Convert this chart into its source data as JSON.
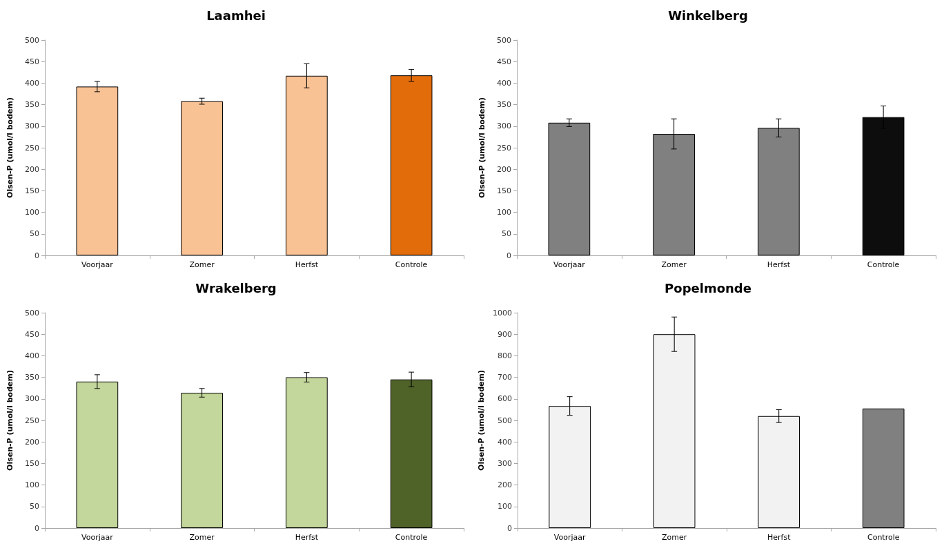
{
  "chart_data": [
    {
      "type": "bar",
      "title": "Laamhei",
      "ylabel": "Olsen-P (umol/l bodem)",
      "categories": [
        "Voorjaar",
        "Zomer",
        "Herfst",
        "Controle"
      ],
      "values": [
        392,
        358,
        417,
        418
      ],
      "errors": [
        12,
        7,
        28,
        14
      ],
      "colors": [
        "#f9c295",
        "#f9c295",
        "#f9c295",
        "#e36c0a"
      ],
      "ylim": [
        0,
        500
      ],
      "yticks": [
        0,
        50,
        100,
        150,
        200,
        250,
        300,
        350,
        400,
        450,
        500
      ],
      "grid": false
    },
    {
      "type": "bar",
      "title": "Winkelberg",
      "ylabel": "Olsen-P (umol/l bodem)",
      "categories": [
        "Voorjaar",
        "Zomer",
        "Herfst",
        "Controle"
      ],
      "values": [
        308,
        282,
        296,
        321
      ],
      "errors": [
        9,
        35,
        21,
        26
      ],
      "colors": [
        "#808080",
        "#808080",
        "#808080",
        "#0d0d0d"
      ],
      "ylim": [
        0,
        500
      ],
      "yticks": [
        0,
        50,
        100,
        150,
        200,
        250,
        300,
        350,
        400,
        450,
        500
      ],
      "grid": false
    },
    {
      "type": "bar",
      "title": "Wrakelberg",
      "ylabel": "Olsen-P (umol/l bodem)",
      "categories": [
        "Voorjaar",
        "Zomer",
        "Herfst",
        "Controle"
      ],
      "values": [
        340,
        314,
        350,
        345
      ],
      "errors": [
        16,
        10,
        11,
        17
      ],
      "colors": [
        "#c3d69b",
        "#c3d69b",
        "#c3d69b",
        "#4f6228"
      ],
      "ylim": [
        0,
        500
      ],
      "yticks": [
        0,
        50,
        100,
        150,
        200,
        250,
        300,
        350,
        400,
        450,
        500
      ],
      "grid": false
    },
    {
      "type": "bar",
      "title": "Popelmonde",
      "ylabel": "Olsen-P (umol/l bodem)",
      "categories": [
        "Voorjaar",
        "Zomer",
        "Herfst",
        "Controle"
      ],
      "values": [
        567,
        900,
        520,
        555
      ],
      "errors": [
        43,
        80,
        30,
        null
      ],
      "colors": [
        "#f2f2f2",
        "#f2f2f2",
        "#f2f2f2",
        "#808080"
      ],
      "ylim": [
        0,
        1000
      ],
      "yticks": [
        0,
        100,
        200,
        300,
        400,
        500,
        600,
        700,
        800,
        900,
        1000
      ],
      "grid": false
    }
  ]
}
